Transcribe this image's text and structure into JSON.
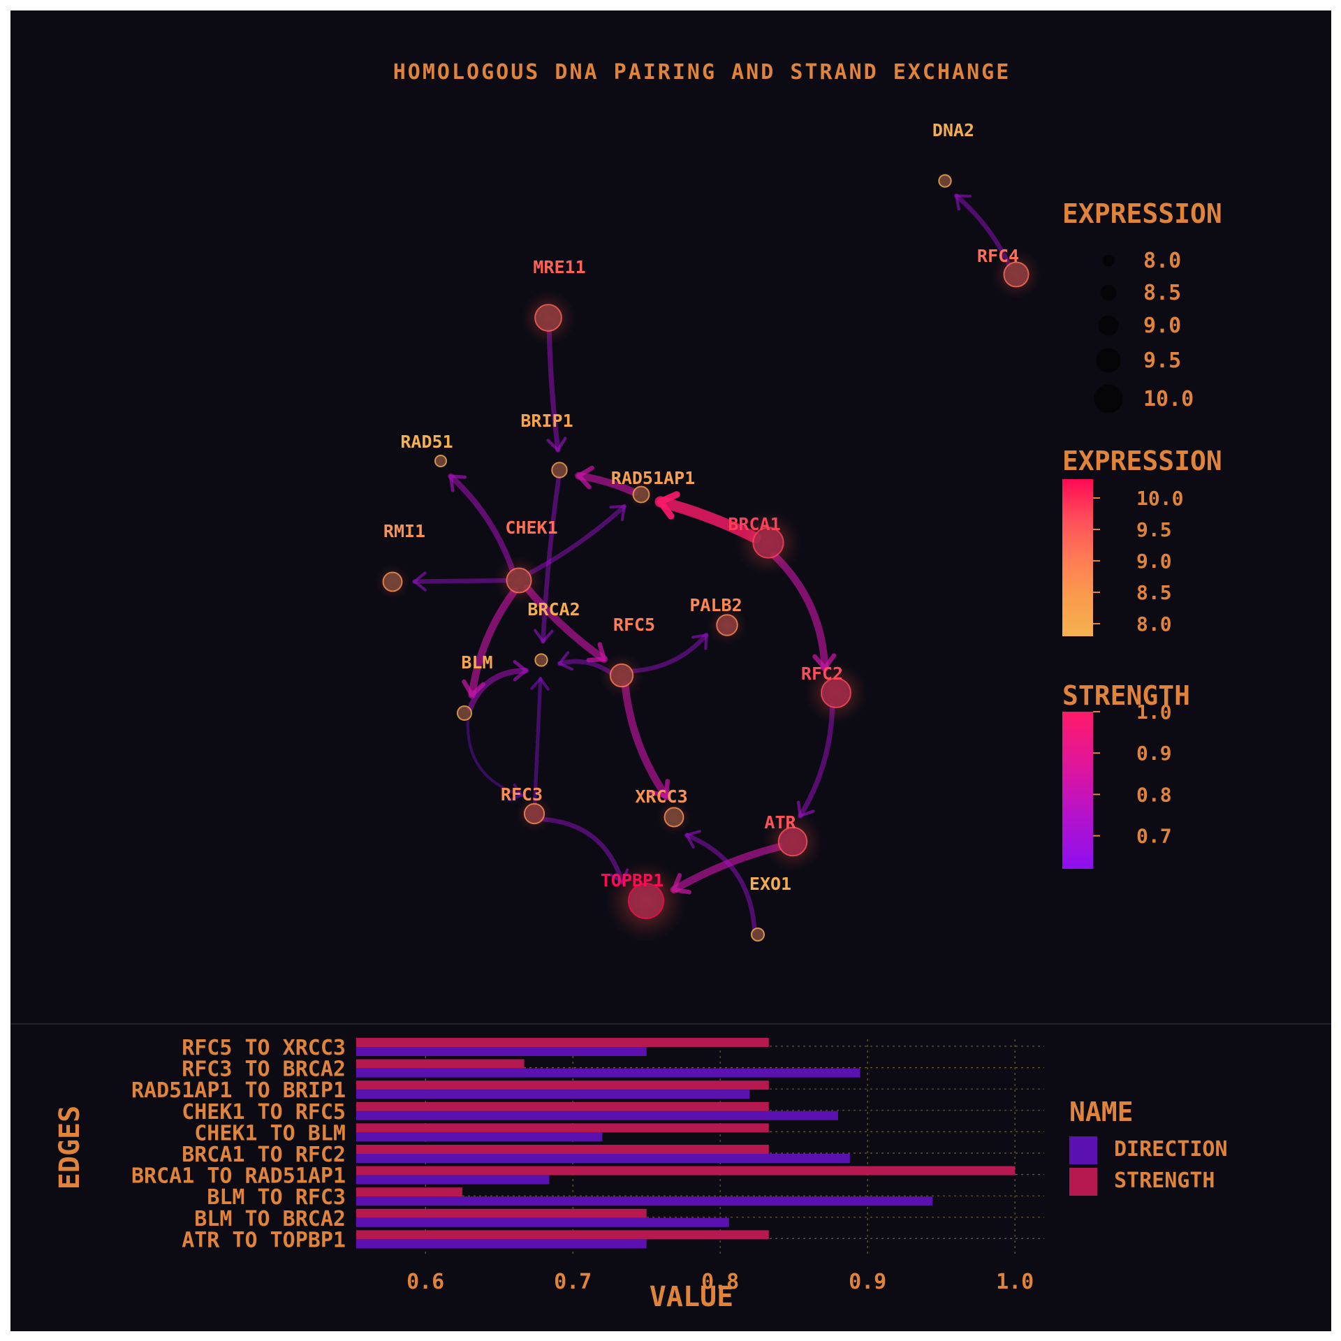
{
  "chart_data": [
    {
      "type": "network",
      "title": "Homologous DNA Pairing and Strand Exchange",
      "nodes": [
        {
          "id": "DNA2",
          "expression": 7.9
        },
        {
          "id": "RFC4",
          "expression": 9.2
        },
        {
          "id": "MRE11",
          "expression": 9.4
        },
        {
          "id": "BRIP1",
          "expression": 8.2
        },
        {
          "id": "RAD51",
          "expression": 7.8
        },
        {
          "id": "RAD51AP1",
          "expression": 8.3
        },
        {
          "id": "BRCA1",
          "expression": 9.8
        },
        {
          "id": "RMI1",
          "expression": 8.6
        },
        {
          "id": "CHEK1",
          "expression": 9.2
        },
        {
          "id": "BRCA2",
          "expression": 7.9
        },
        {
          "id": "PALB2",
          "expression": 8.8
        },
        {
          "id": "RFC5",
          "expression": 9.0
        },
        {
          "id": "BLM",
          "expression": 8.1
        },
        {
          "id": "RFC2",
          "expression": 9.7
        },
        {
          "id": "RFC3",
          "expression": 8.7
        },
        {
          "id": "XRCC3",
          "expression": 8.6
        },
        {
          "id": "ATR",
          "expression": 9.6
        },
        {
          "id": "TOPBP1",
          "expression": 10.3
        },
        {
          "id": "EXO1",
          "expression": 7.95
        }
      ],
      "edges": [
        {
          "source": "RFC4",
          "target": "DNA2",
          "strength": 0.7
        },
        {
          "source": "MRE11",
          "target": "BRIP1",
          "strength": 0.72
        },
        {
          "source": "BRCA1",
          "target": "RAD51AP1",
          "strength": 1.0
        },
        {
          "source": "RAD51AP1",
          "target": "BRIP1",
          "strength": 0.83
        },
        {
          "source": "BRCA1",
          "target": "RFC2",
          "strength": 0.83
        },
        {
          "source": "RFC2",
          "target": "ATR",
          "strength": 0.72
        },
        {
          "source": "ATR",
          "target": "TOPBP1",
          "strength": 0.83
        },
        {
          "source": "CHEK1",
          "target": "RMI1",
          "strength": 0.7
        },
        {
          "source": "CHEK1",
          "target": "RAD51",
          "strength": 0.75
        },
        {
          "source": "CHEK1",
          "target": "BLM",
          "strength": 0.83
        },
        {
          "source": "CHEK1",
          "target": "RFC5",
          "strength": 0.83
        },
        {
          "source": "CHEK1",
          "target": "RAD51AP1",
          "strength": 0.7
        },
        {
          "source": "BRIP1",
          "target": "BRCA2",
          "strength": 0.7
        },
        {
          "source": "RFC5",
          "target": "BRCA2",
          "strength": 0.7
        },
        {
          "source": "RFC5",
          "target": "PALB2",
          "strength": 0.7
        },
        {
          "source": "RFC5",
          "target": "XRCC3",
          "strength": 0.83
        },
        {
          "source": "BLM",
          "target": "BRCA2",
          "strength": 0.75
        },
        {
          "source": "BLM",
          "target": "RFC3",
          "strength": 0.62
        },
        {
          "source": "RFC3",
          "target": "BRCA2",
          "strength": 0.66
        },
        {
          "source": "RFC3",
          "target": "TOPBP1",
          "strength": 0.7
        },
        {
          "source": "EXO1",
          "target": "XRCC3",
          "strength": 0.7
        }
      ],
      "legend_size": {
        "title": "Expression",
        "values": [
          "8.0",
          "8.5",
          "9.0",
          "9.5",
          "10.0"
        ]
      },
      "legend_color": {
        "title": "Expression",
        "ticks": [
          "10.0",
          "9.5",
          "9.0",
          "8.5",
          "8.0"
        ],
        "range": [
          7.8,
          10.3
        ],
        "colors": [
          "#ff0a54",
          "#ff4d5a",
          "#ff7a55",
          "#fa9c4c",
          "#f4b150"
        ]
      },
      "legend_strength": {
        "title": "Strength",
        "ticks": [
          "1.0",
          "0.9",
          "0.8",
          "0.7"
        ],
        "range": [
          0.62,
          1.0
        ],
        "colors": [
          "#ff1a6a",
          "#e0169a",
          "#b412cc",
          "#8c10f0"
        ]
      }
    },
    {
      "type": "bar",
      "orientation": "horizontal",
      "categories": [
        "RFC5 to XRCC3",
        "RFC3 to BRCA2",
        "RAD51AP1 to BRIP1",
        "CHEK1 to RFC5",
        "CHEK1 to BLM",
        "BRCA1 to RFC2",
        "BRCA1 to RAD51AP1",
        "BLM to RFC3",
        "BLM to BRCA2",
        "ATR to TOPBP1"
      ],
      "series": [
        {
          "name": "direction",
          "color": "#5a11b0",
          "values": [
            0.75,
            0.895,
            0.82,
            0.88,
            0.72,
            0.888,
            0.684,
            0.944,
            0.806,
            0.75
          ]
        },
        {
          "name": "strength",
          "color": "#b5194f",
          "values": [
            0.833,
            0.667,
            0.833,
            0.833,
            0.833,
            0.833,
            1.0,
            0.625,
            0.75,
            0.833
          ]
        }
      ],
      "xlabel": "value",
      "ylabel": "edges",
      "xticks": [
        "0.6",
        "0.7",
        "0.8",
        "0.9",
        "1.0"
      ],
      "xlim": [
        0.553,
        1.02
      ],
      "legend_title": "name",
      "legend_items": [
        "direction",
        "strength"
      ],
      "grid": true
    }
  ],
  "colors": {
    "background": "#0c0b14",
    "text": "#e0843c",
    "node_label_high": "#e9436a"
  }
}
